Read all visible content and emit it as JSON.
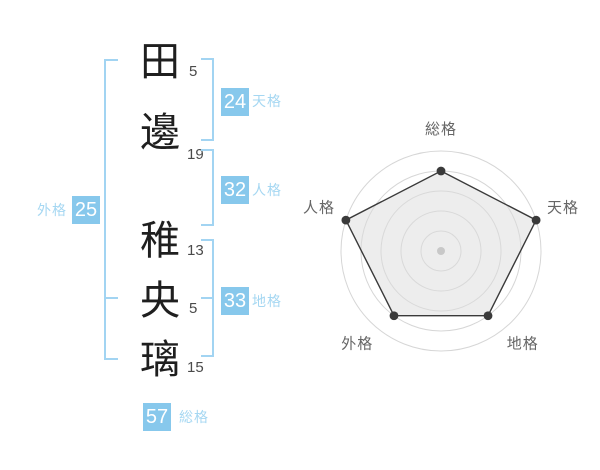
{
  "name_display": {
    "characters": [
      {
        "char": "田",
        "strokes": "5"
      },
      {
        "char": "邊",
        "strokes": "19"
      },
      {
        "char": "稚",
        "strokes": "13"
      },
      {
        "char": "央",
        "strokes": "5"
      },
      {
        "char": "璃",
        "strokes": "15"
      }
    ]
  },
  "kaku": {
    "tenkaku": {
      "label": "天格",
      "value": "24"
    },
    "jinkaku": {
      "label": "人格",
      "value": "32"
    },
    "chikaku": {
      "label": "地格",
      "value": "33"
    },
    "gaikaku": {
      "label": "外格",
      "value": "25"
    },
    "soukaku": {
      "label": "総格",
      "value": "57"
    }
  },
  "colors": {
    "badge_blue": "#87c8ec",
    "kaku_label_blue": "#a5d7f2",
    "bracket_blue": "#a2d4f2",
    "badge_text_white": "#ffffff",
    "kanji_text": "#1f1f1f",
    "stroke_number_text": "#4a4a4a",
    "grid_ring_gray": "#d6d6d6",
    "pentagon_stroke": "#3a3a3a",
    "pentagon_fill": "#dcdcdc",
    "axis_label_gray": "#666666",
    "center_dot_gray": "#c8c8c8"
  },
  "chart_data": {
    "type": "radar",
    "axes": [
      "総格",
      "天格",
      "地格",
      "外格",
      "人格"
    ],
    "values": [
      4,
      5,
      4,
      4,
      5
    ],
    "max": 5,
    "rings": 5,
    "grid_shape": "concentric-circles",
    "spokes": false,
    "legend": false,
    "start_angle_deg": -90,
    "direction": "clockwise",
    "notes": "vertex scores out of 5 rings; 天格 and 人格 at outer ring, others at ring 4"
  }
}
